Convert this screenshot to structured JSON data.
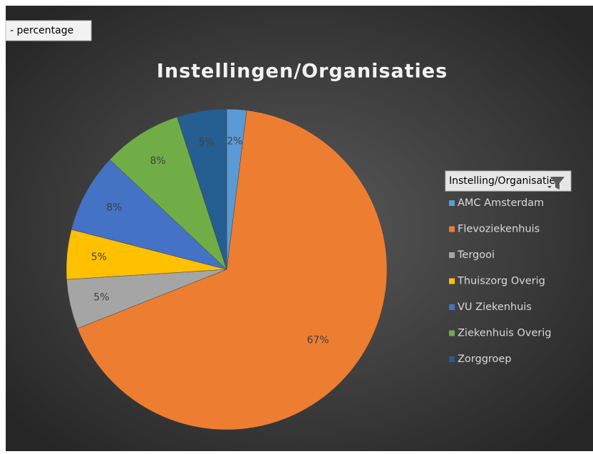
{
  "chart_data": {
    "type": "pie",
    "field_button": "- percentage",
    "title": "Instellingen/Organisaties",
    "legend_title": "Instelling/Organisatie",
    "categories": [
      "AMC Amsterdam",
      "Flevoziekenhuis",
      "Tergooi",
      "Thuiszorg Overig",
      "VU Ziekenhuis",
      "Ziekenhuis Overig",
      "Zorggroep"
    ],
    "values": [
      2,
      67,
      5,
      5,
      8,
      8,
      5
    ],
    "value_labels": [
      "2%",
      "67%",
      "5%",
      "5%",
      "8%",
      "8%",
      "5%"
    ],
    "colors": [
      "#5b9bd5",
      "#ed7d31",
      "#a5a5a5",
      "#ffc000",
      "#4472c4",
      "#70ad47",
      "#255e91"
    ],
    "legend": "right"
  }
}
